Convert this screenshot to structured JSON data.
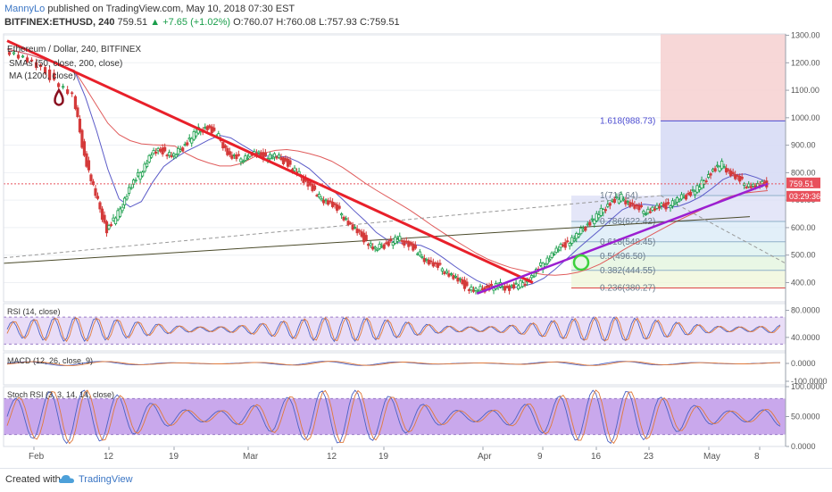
{
  "header": {
    "user": "MannyLo",
    "published": "published on TradingView.com, May 10, 2018 07:30 EST",
    "symbol": "BITFINEX:ETHUSD, 240",
    "last": "759.51",
    "change": "▲ +7.65 (+1.02%)",
    "ohlc": "O:760.07 H:760.08 L:757.93 C:759.51"
  },
  "footer": {
    "created_with": "Created with",
    "brand": "TradingView"
  },
  "colors": {
    "up": "#1a9e4b",
    "down": "#d43a3a",
    "trend_red": "#e8202a",
    "trend_purple": "#9b1fd1",
    "sma50": "#5b5bc8",
    "sma200": "#e05c5c",
    "ma1200": "#4a4a2a",
    "osc_fill": "#e9ddf7",
    "stoch_fill": "#c9a8ec",
    "price_label": "#e8505b"
  },
  "chart_data": [
    {
      "type": "candlestick",
      "title": "Ethereum / Dollar, 240, BITFINEX",
      "legend": [
        "SMAs (50, close, 200, close)",
        "MA (1200, close)"
      ],
      "x_ticks": [
        "Feb",
        "12",
        "19",
        "Mar",
        "12",
        "19",
        "Apr",
        "9",
        "16",
        "23",
        "May",
        "8"
      ],
      "y_ticks": [
        "1300.00",
        "1200.00",
        "1100.00",
        "1000.00",
        "900.00",
        "800.00",
        "700.00",
        "600.00",
        "500.00",
        "400.00"
      ],
      "ylim": [
        330,
        1305
      ],
      "last_price": "759.51",
      "countdown": "03:29:36",
      "price_path": [
        [
          0,
          1250
        ],
        [
          2,
          1210
        ],
        [
          4,
          1150
        ],
        [
          6,
          1080
        ],
        [
          7,
          860
        ],
        [
          8,
          720
        ],
        [
          9,
          590
        ],
        [
          10,
          650
        ],
        [
          11,
          740
        ],
        [
          12,
          800
        ],
        [
          13,
          870
        ],
        [
          14,
          880
        ],
        [
          15,
          860
        ],
        [
          16,
          900
        ],
        [
          17,
          950
        ],
        [
          18,
          965
        ],
        [
          19,
          930
        ],
        [
          20,
          860
        ],
        [
          21,
          850
        ],
        [
          22,
          870
        ],
        [
          23,
          860
        ],
        [
          24,
          860
        ],
        [
          25,
          840
        ],
        [
          26,
          800
        ],
        [
          27,
          760
        ],
        [
          28,
          710
        ],
        [
          29,
          690
        ],
        [
          30,
          650
        ],
        [
          31,
          600
        ],
        [
          32,
          560
        ],
        [
          33,
          520
        ],
        [
          34,
          540
        ],
        [
          35,
          560
        ],
        [
          36,
          540
        ],
        [
          37,
          500
        ],
        [
          38,
          470
        ],
        [
          39,
          450
        ],
        [
          40,
          420
        ],
        [
          41,
          390
        ],
        [
          42,
          370
        ],
        [
          43,
          380
        ],
        [
          44,
          390
        ],
        [
          45,
          380
        ],
        [
          46,
          395
        ],
        [
          47,
          420
        ],
        [
          48,
          470
        ],
        [
          49,
          510
        ],
        [
          50,
          540
        ],
        [
          51,
          570
        ],
        [
          52,
          610
        ],
        [
          53,
          650
        ],
        [
          54,
          690
        ],
        [
          55,
          710
        ],
        [
          56,
          680
        ],
        [
          57,
          660
        ],
        [
          58,
          670
        ],
        [
          59,
          680
        ],
        [
          60,
          700
        ],
        [
          61,
          720
        ],
        [
          62,
          750
        ],
        [
          63,
          800
        ],
        [
          64,
          830
        ],
        [
          65,
          790
        ],
        [
          66,
          760
        ],
        [
          67,
          750
        ],
        [
          68,
          760
        ]
      ],
      "trendlines": [
        {
          "name": "downtrend",
          "from": [
            0,
            1280
          ],
          "to": [
            47,
            400
          ]
        },
        {
          "name": "uptrend",
          "from": [
            42,
            360
          ],
          "to": [
            68,
            760
          ]
        }
      ],
      "fibonacci": [
        {
          "level": "1.618(988.73)",
          "value": 988.73
        },
        {
          "level": "1(716.64)",
          "value": 716.64
        },
        {
          "level": "0.786(622.42)",
          "value": 622.42
        },
        {
          "level": "0.618(548.45)",
          "value": 548.45
        },
        {
          "level": "0.5(496.50)",
          "value": 496.5
        },
        {
          "level": "0.382(444.55)",
          "value": 444.55
        },
        {
          "level": "0.236(380.27)",
          "value": 380.27
        }
      ]
    },
    {
      "type": "line",
      "title": "RSI (14, close)",
      "y_ticks": [
        "80.0000",
        "40.0000"
      ],
      "ylim": [
        20,
        90
      ],
      "bands": [
        70,
        30
      ]
    },
    {
      "type": "line",
      "title": "MACD (12, 26, close, 9)",
      "y_ticks": [
        "0.0000",
        "-100.0000"
      ],
      "ylim": [
        -120,
        60
      ]
    },
    {
      "type": "line",
      "title": "Stoch RSI (3, 3, 14, 14, close)",
      "y_ticks": [
        "100.0000",
        "50.0000",
        "0.0000"
      ],
      "ylim": [
        0,
        100
      ],
      "bands": [
        80,
        20
      ]
    }
  ]
}
